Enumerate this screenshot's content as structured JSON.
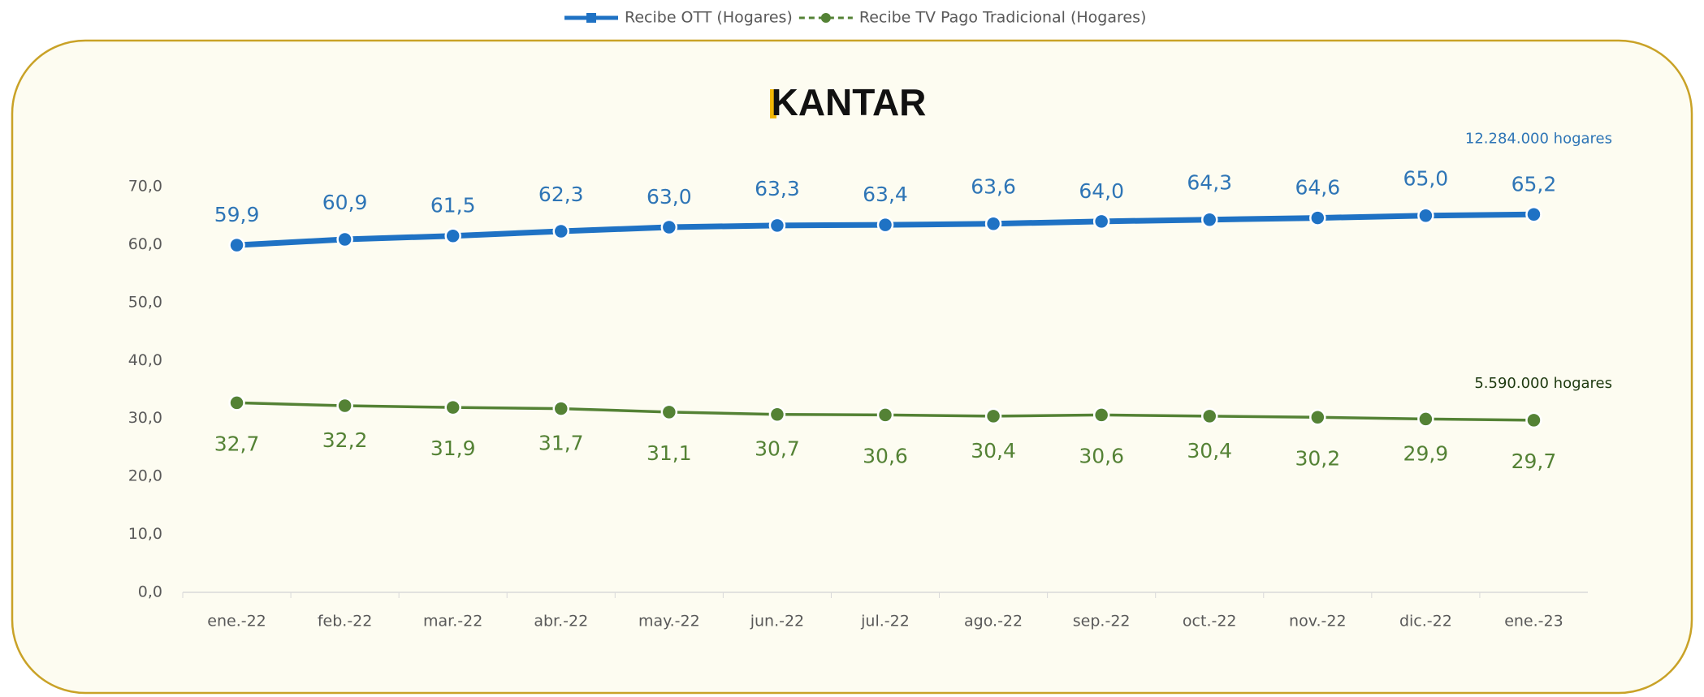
{
  "chart_data": {
    "type": "line",
    "brand": "KANTAR",
    "categories": [
      "ene.-22",
      "feb.-22",
      "mar.-22",
      "abr.-22",
      "may.-22",
      "jun.-22",
      "jul.-22",
      "ago.-22",
      "sep.-22",
      "oct.-22",
      "nov.-22",
      "dic.-22",
      "ene.-23"
    ],
    "series": [
      {
        "name": "Recibe OTT (Hogares)",
        "color": "#1f72c4",
        "label_color": "#2e75b6",
        "values": [
          59.9,
          60.9,
          61.5,
          62.3,
          63.0,
          63.3,
          63.4,
          63.6,
          64.0,
          64.3,
          64.6,
          65.0,
          65.2
        ],
        "value_labels": [
          "59,9",
          "60,9",
          "61,5",
          "62,3",
          "63,0",
          "63,3",
          "63,4",
          "63,6",
          "64,0",
          "64,3",
          "64,6",
          "65,0",
          "65,2"
        ],
        "annotation": "12.284.000 hogares"
      },
      {
        "name": "Recibe TV Pago Tradicional (Hogares)",
        "color": "#548235",
        "label_color": "#548235",
        "values": [
          32.7,
          32.2,
          31.9,
          31.7,
          31.1,
          30.7,
          30.6,
          30.4,
          30.6,
          30.4,
          30.2,
          29.9,
          29.7
        ],
        "value_labels": [
          "32,7",
          "32,2",
          "31,9",
          "31,7",
          "31,1",
          "30,7",
          "30,6",
          "30,4",
          "30,6",
          "30,4",
          "30,2",
          "29,9",
          "29,7"
        ],
        "annotation": "5.590.000 hogares"
      }
    ],
    "ylim": [
      0,
      70
    ],
    "yticks": [
      {
        "value": 0,
        "label": "0,0"
      },
      {
        "value": 10,
        "label": "10,0"
      },
      {
        "value": 20,
        "label": "20,0"
      },
      {
        "value": 30,
        "label": "30,0"
      },
      {
        "value": 40,
        "label": "40,0"
      },
      {
        "value": 50,
        "label": "50,0"
      },
      {
        "value": 60,
        "label": "60,0"
      },
      {
        "value": 70,
        "label": "70,0"
      }
    ],
    "grid": false,
    "legend": "top"
  }
}
